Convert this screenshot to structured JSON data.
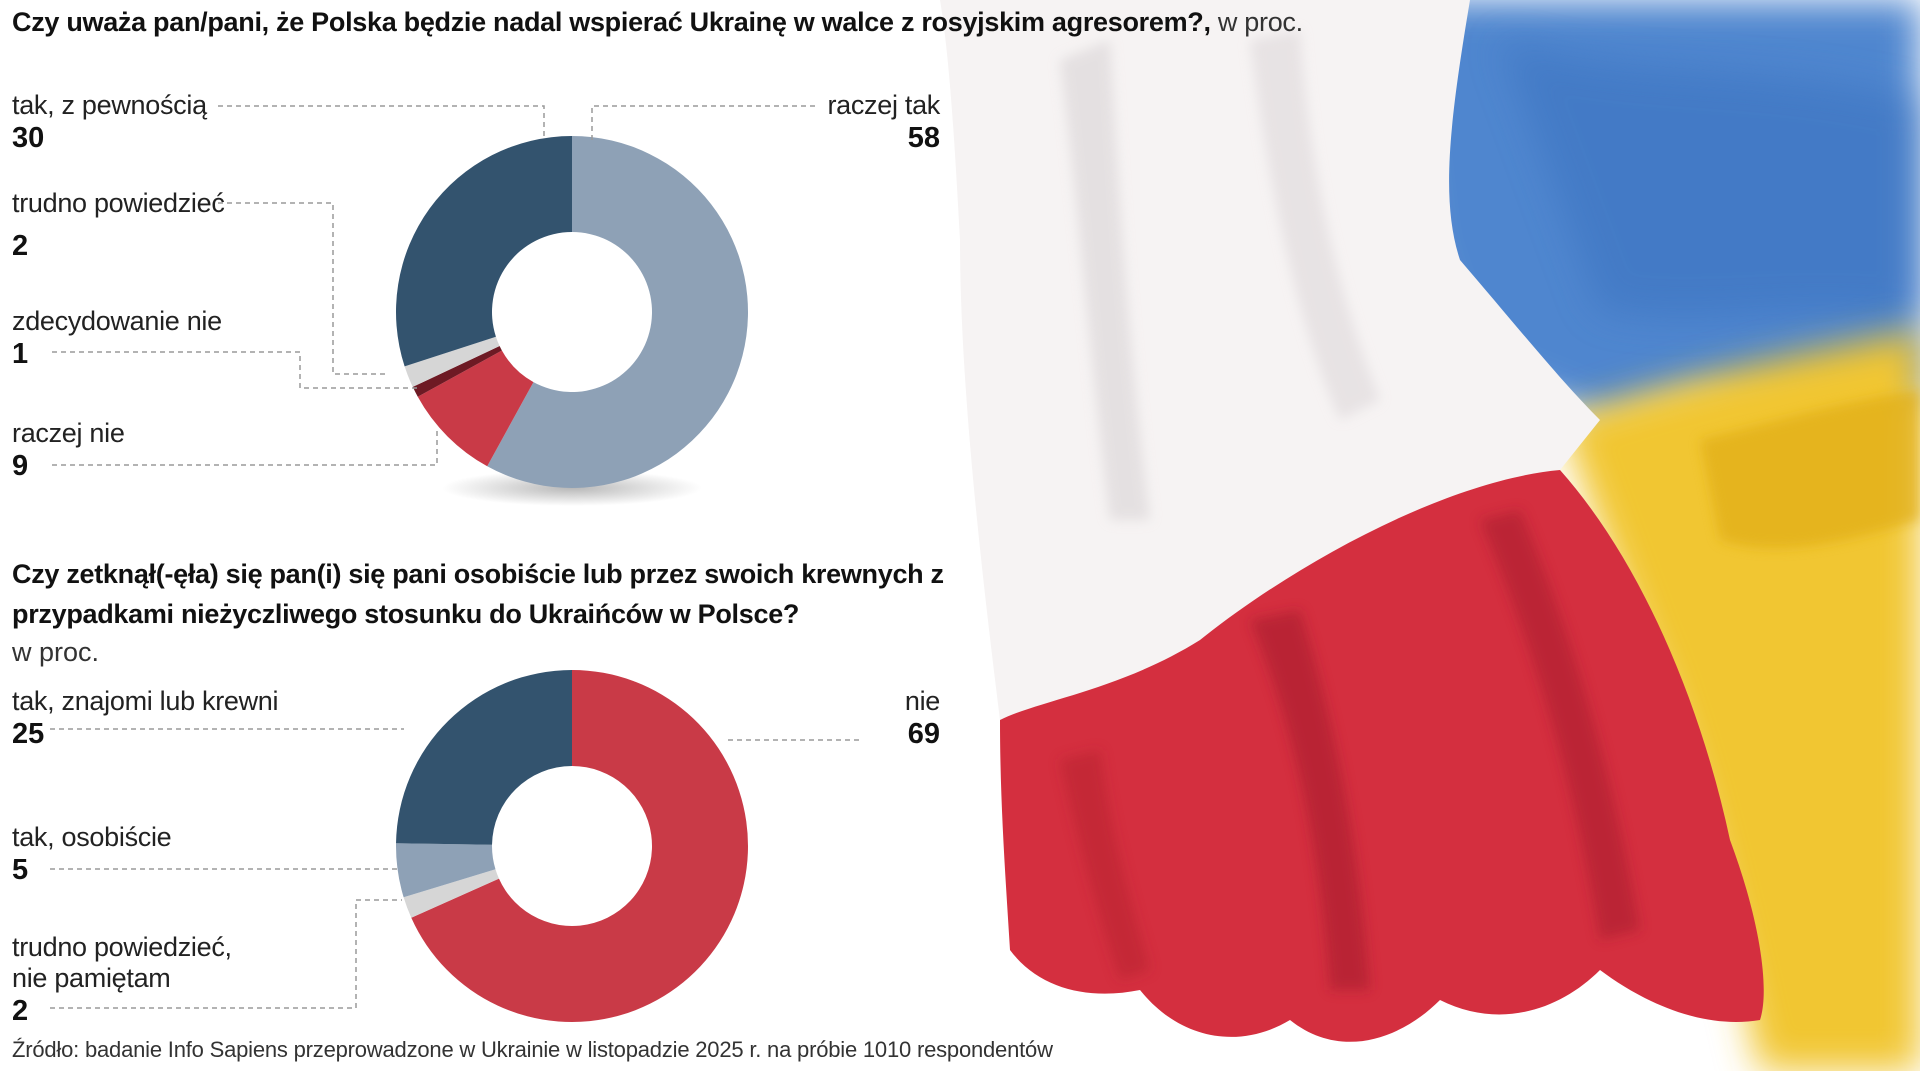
{
  "chart_data": [
    {
      "type": "pie",
      "title": "Czy uważa pan/pani, że Polska będzie nadal wspierać Ukrainę w walce z rosyjskim agresorem?,",
      "unit": "w proc.",
      "categories": [
        "raczej tak",
        "raczej nie",
        "zdecydowanie nie",
        "trudno powiedzieć",
        "tak, z pewnością"
      ],
      "values": [
        58,
        9,
        1,
        2,
        30
      ],
      "colors": [
        "#8ea1b6",
        "#c93a47",
        "#6e1a24",
        "#d6d6d6",
        "#33536e"
      ]
    },
    {
      "type": "pie",
      "title": "Czy zetknął(-ęła) się pan(i) się pani osobiście lub przez swoich krewnych z przypadkami nieżyczliwego stosunku do Ukraińców w Polsce?",
      "unit": "w proc.",
      "categories": [
        "nie",
        "trudno powiedzieć, nie pamiętam",
        "tak, osobiście",
        "tak, znajomi lub krewni"
      ],
      "values": [
        69,
        2,
        5,
        25
      ],
      "colors": [
        "#c93a47",
        "#d6d6d6",
        "#8ea1b6",
        "#33536e"
      ]
    }
  ],
  "labels1": {
    "a": {
      "text": "tak, z pewnością",
      "value": "30"
    },
    "b": {
      "text": "raczej tak",
      "value": "58"
    },
    "c": {
      "text": "trudno powiedzieć",
      "value": "2"
    },
    "d": {
      "text": "zdecydowanie nie",
      "value": "1"
    },
    "e": {
      "text": "raczej nie",
      "value": "9"
    }
  },
  "labels2": {
    "a": {
      "text": "tak, znajomi lub krewni",
      "value": "25"
    },
    "b": {
      "text": "nie",
      "value": "69"
    },
    "c": {
      "text": "tak, osobiście",
      "value": "5"
    },
    "d1": {
      "text": "trudno powiedzieć,"
    },
    "d2": {
      "text": "nie pamiętam"
    },
    "d": {
      "value": "2"
    }
  },
  "source": "Źródło: badanie Info Sapiens przeprowadzone w Ukrainie w listopadzie 2025 r. na próbie 1010 respondentów",
  "illustration": {
    "name": "watercolor-polish-and-ukrainian-flags",
    "colors": [
      "#ffffff",
      "#d8303f",
      "#3f7fd0",
      "#f3c82a"
    ]
  }
}
